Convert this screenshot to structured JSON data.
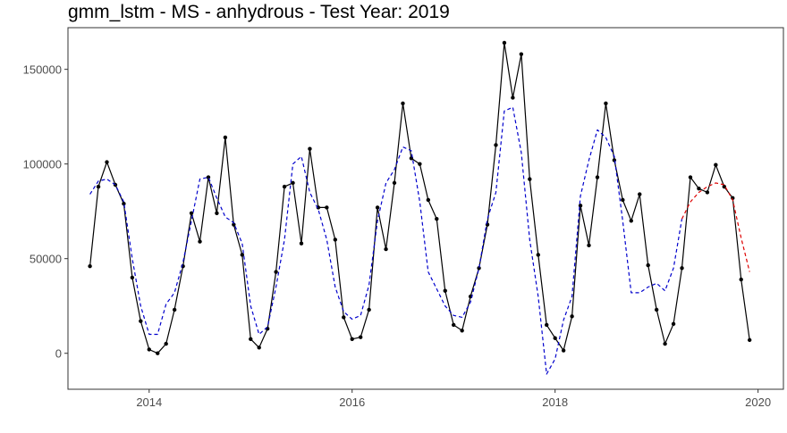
{
  "chart_data": {
    "type": "line",
    "title": "gmm_lstm - MS - anhydrous - Test Year: 2019",
    "xlabel": "",
    "ylabel": "",
    "xlim": [
      2013.2,
      2020.25
    ],
    "ylim": [
      -19000,
      172000
    ],
    "x_ticks": [
      2014,
      2016,
      2018,
      2020
    ],
    "y_ticks": [
      0,
      50000,
      100000,
      150000
    ],
    "x_tick_labels": [
      "2014",
      "2016",
      "2018",
      "2020"
    ],
    "y_tick_labels": [
      "0",
      "50000",
      "100000",
      "150000"
    ],
    "grid": false,
    "legend": "none",
    "series": [
      {
        "role": "actual",
        "color": "#000000",
        "style": "solid",
        "markers": true,
        "x": [
          "2013-06",
          "2013-07",
          "2013-08",
          "2013-09",
          "2013-10",
          "2013-11",
          "2013-12",
          "2014-01",
          "2014-02",
          "2014-03",
          "2014-04",
          "2014-05",
          "2014-06",
          "2014-07",
          "2014-08",
          "2014-09",
          "2014-10",
          "2014-11",
          "2014-12",
          "2015-01",
          "2015-02",
          "2015-03",
          "2015-04",
          "2015-05",
          "2015-06",
          "2015-07",
          "2015-08",
          "2015-09",
          "2015-10",
          "2015-11",
          "2015-12",
          "2016-01",
          "2016-02",
          "2016-03",
          "2016-04",
          "2016-05",
          "2016-06",
          "2016-07",
          "2016-08",
          "2016-09",
          "2016-10",
          "2016-11",
          "2016-12",
          "2017-01",
          "2017-02",
          "2017-03",
          "2017-04",
          "2017-05",
          "2017-06",
          "2017-07",
          "2017-08",
          "2017-09",
          "2017-10",
          "2017-11",
          "2017-12",
          "2018-01",
          "2018-02",
          "2018-03",
          "2018-04",
          "2018-05",
          "2018-06",
          "2018-07",
          "2018-08",
          "2018-09",
          "2018-10",
          "2018-11",
          "2018-12",
          "2019-01",
          "2019-02",
          "2019-03",
          "2019-04",
          "2019-05",
          "2019-06",
          "2019-07",
          "2019-08",
          "2019-09",
          "2019-10",
          "2019-11",
          "2019-12"
        ],
        "values": [
          46000,
          88000,
          101000,
          89000,
          79000,
          40000,
          17000,
          2000,
          0,
          5000,
          23000,
          46000,
          74000,
          59000,
          93000,
          74000,
          114000,
          68000,
          52000,
          7500,
          3000,
          13000,
          43000,
          88000,
          90000,
          58000,
          108000,
          77000,
          77000,
          60000,
          19000,
          7500,
          8500,
          23000,
          77000,
          55000,
          90000,
          132000,
          103000,
          100000,
          81000,
          71000,
          33000,
          15000,
          12000,
          30000,
          45000,
          68000,
          110000,
          164000,
          135000,
          158000,
          92000,
          52000,
          15000,
          8000,
          1500,
          19500,
          78000,
          57000,
          93000,
          132000,
          102000,
          81000,
          70000,
          84000,
          46500,
          23000,
          5000,
          15500,
          45000,
          93000,
          87000,
          85000,
          99500,
          88000,
          82000,
          39000,
          7000
        ]
      },
      {
        "role": "fitted",
        "color": "#0000cc",
        "style": "dashed",
        "markers": false,
        "x": [
          "2013-06",
          "2013-07",
          "2013-08",
          "2013-09",
          "2013-10",
          "2013-11",
          "2013-12",
          "2014-01",
          "2014-02",
          "2014-03",
          "2014-04",
          "2014-05",
          "2014-06",
          "2014-07",
          "2014-08",
          "2014-09",
          "2014-10",
          "2014-11",
          "2014-12",
          "2015-01",
          "2015-02",
          "2015-03",
          "2015-04",
          "2015-05",
          "2015-06",
          "2015-07",
          "2015-08",
          "2015-09",
          "2015-10",
          "2015-11",
          "2015-12",
          "2016-01",
          "2016-02",
          "2016-03",
          "2016-04",
          "2016-05",
          "2016-06",
          "2016-07",
          "2016-08",
          "2016-09",
          "2016-10",
          "2016-11",
          "2016-12",
          "2017-01",
          "2017-02",
          "2017-03",
          "2017-04",
          "2017-05",
          "2017-06",
          "2017-07",
          "2017-08",
          "2017-09",
          "2017-10",
          "2017-11",
          "2017-12",
          "2018-01",
          "2018-02",
          "2018-03",
          "2018-04",
          "2018-05",
          "2018-06",
          "2018-07",
          "2018-08",
          "2018-09",
          "2018-10",
          "2018-11",
          "2018-12",
          "2019-01",
          "2019-02",
          "2019-03",
          "2019-04"
        ],
        "values": [
          84000,
          91000,
          92000,
          89000,
          80000,
          50000,
          25000,
          10000,
          10000,
          26000,
          32000,
          48000,
          70000,
          92000,
          93000,
          82000,
          72000,
          69000,
          58000,
          25000,
          10000,
          14000,
          35000,
          60000,
          100000,
          104000,
          85000,
          76000,
          60000,
          35000,
          22000,
          18000,
          20000,
          36000,
          70000,
          90000,
          97000,
          109000,
          107000,
          80000,
          43000,
          34000,
          25000,
          20000,
          19000,
          27000,
          45000,
          71000,
          85000,
          128000,
          130000,
          106000,
          60000,
          30000,
          -11000,
          -3000,
          17500,
          30000,
          83000,
          102000,
          118000,
          114000,
          104000,
          70000,
          32000,
          32000,
          35000,
          37000,
          33000,
          45000,
          71000
        ]
      },
      {
        "role": "forecast",
        "color": "#dd0000",
        "style": "dashed",
        "markers": false,
        "x": [
          "2019-04",
          "2019-05",
          "2019-06",
          "2019-07",
          "2019-08",
          "2019-09",
          "2019-10",
          "2019-11",
          "2019-12"
        ],
        "values": [
          71000,
          80000,
          85000,
          88000,
          90000,
          89000,
          81000,
          61000,
          43000
        ]
      }
    ]
  }
}
